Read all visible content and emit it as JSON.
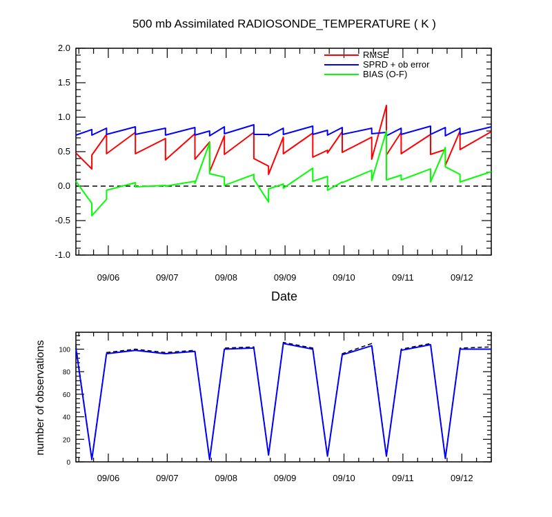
{
  "chart_data": [
    {
      "type": "line",
      "title": "500 mb Assimilated RADIOSONDE_TEMPERATURE ( K )",
      "xlabel": "Date",
      "ylabel": "",
      "xlim": [
        5.45,
        12.5
      ],
      "ylim": [
        -1.0,
        2.0
      ],
      "yticks": [
        -1.0,
        -0.5,
        0.0,
        0.5,
        1.0,
        1.5,
        2.0
      ],
      "ytick_labels": [
        "-1.0",
        "-0.5",
        "0.0",
        "0.5",
        "1.0",
        "1.5",
        "2.0"
      ],
      "xticks": [
        6,
        7,
        8,
        9,
        10,
        11,
        12
      ],
      "xtick_labels": [
        "09/06",
        "09/07",
        "09/08",
        "09/09",
        "09/10",
        "09/11",
        "09/12"
      ],
      "reference_line": {
        "y": 0.0,
        "style": "dashed",
        "color": "#000000"
      },
      "legend_position": "top-right",
      "series": [
        {
          "name": "RMSE",
          "color": "#ff0000",
          "points": [
            [
              5.45,
              0.48
            ],
            [
              5.72,
              0.25
            ],
            [
              5.72,
              0.45
            ],
            [
              5.97,
              0.75
            ],
            [
              5.97,
              0.47
            ],
            [
              6.46,
              0.78
            ],
            [
              6.46,
              0.47
            ],
            [
              6.97,
              0.69
            ],
            [
              6.97,
              0.38
            ],
            [
              7.47,
              0.76
            ],
            [
              7.47,
              0.39
            ],
            [
              7.72,
              0.64
            ],
            [
              7.72,
              0.21
            ],
            [
              7.97,
              0.73
            ],
            [
              7.97,
              0.46
            ],
            [
              8.47,
              0.78
            ],
            [
              8.47,
              0.4
            ],
            [
              8.72,
              0.29
            ],
            [
              8.72,
              0.17
            ],
            [
              8.97,
              0.71
            ],
            [
              8.97,
              0.47
            ],
            [
              9.47,
              0.77
            ],
            [
              9.47,
              0.42
            ],
            [
              9.72,
              0.52
            ],
            [
              9.72,
              0.48
            ],
            [
              9.97,
              0.79
            ],
            [
              9.97,
              0.49
            ],
            [
              10.47,
              0.71
            ],
            [
              10.47,
              0.39
            ],
            [
              10.72,
              1.17
            ],
            [
              10.72,
              0.45
            ],
            [
              10.97,
              0.78
            ],
            [
              10.97,
              0.47
            ],
            [
              11.47,
              0.75
            ],
            [
              11.47,
              0.46
            ],
            [
              11.72,
              0.53
            ],
            [
              11.72,
              0.3
            ],
            [
              11.97,
              0.8
            ],
            [
              11.97,
              0.53
            ],
            [
              12.5,
              0.79
            ]
          ]
        },
        {
          "name": "SPRD + ob error",
          "color": "#0000ff",
          "points": [
            [
              5.45,
              0.74
            ],
            [
              5.72,
              0.82
            ],
            [
              5.72,
              0.74
            ],
            [
              5.97,
              0.84
            ],
            [
              5.97,
              0.75
            ],
            [
              6.46,
              0.86
            ],
            [
              6.46,
              0.75
            ],
            [
              6.97,
              0.84
            ],
            [
              6.97,
              0.74
            ],
            [
              7.47,
              0.85
            ],
            [
              7.47,
              0.74
            ],
            [
              7.72,
              0.8
            ],
            [
              7.72,
              0.73
            ],
            [
              7.97,
              0.86
            ],
            [
              7.97,
              0.76
            ],
            [
              8.47,
              0.89
            ],
            [
              8.47,
              0.75
            ],
            [
              8.72,
              0.75
            ],
            [
              8.72,
              0.73
            ],
            [
              8.97,
              0.84
            ],
            [
              8.97,
              0.75
            ],
            [
              9.47,
              0.87
            ],
            [
              9.47,
              0.75
            ],
            [
              9.72,
              0.81
            ],
            [
              9.72,
              0.74
            ],
            [
              9.97,
              0.85
            ],
            [
              9.97,
              0.75
            ],
            [
              10.47,
              0.84
            ],
            [
              10.47,
              0.76
            ],
            [
              10.72,
              0.78
            ],
            [
              10.72,
              0.73
            ],
            [
              10.97,
              0.84
            ],
            [
              10.97,
              0.75
            ],
            [
              11.47,
              0.87
            ],
            [
              11.47,
              0.75
            ],
            [
              11.72,
              0.85
            ],
            [
              11.72,
              0.73
            ],
            [
              11.97,
              0.84
            ],
            [
              11.97,
              0.75
            ],
            [
              12.5,
              0.86
            ]
          ]
        },
        {
          "name": "BIAS (O-F)",
          "color": "#00ff00",
          "points": [
            [
              5.45,
              0.07
            ],
            [
              5.72,
              -0.25
            ],
            [
              5.72,
              -0.43
            ],
            [
              5.97,
              -0.19
            ],
            [
              5.97,
              -0.06
            ],
            [
              6.46,
              0.05
            ],
            [
              6.46,
              -0.01
            ],
            [
              6.97,
              0.01
            ],
            [
              6.97,
              0.0
            ],
            [
              7.47,
              0.07
            ],
            [
              7.47,
              0.04
            ],
            [
              7.72,
              0.63
            ],
            [
              7.72,
              0.18
            ],
            [
              7.97,
              0.13
            ],
            [
              7.97,
              0.01
            ],
            [
              8.47,
              0.17
            ],
            [
              8.47,
              0.1
            ],
            [
              8.72,
              -0.23
            ],
            [
              8.72,
              -0.04
            ],
            [
              8.97,
              0.03
            ],
            [
              8.97,
              -0.03
            ],
            [
              9.47,
              0.26
            ],
            [
              9.47,
              0.07
            ],
            [
              9.72,
              0.14
            ],
            [
              9.72,
              -0.06
            ],
            [
              9.97,
              0.06
            ],
            [
              9.97,
              0.05
            ],
            [
              10.47,
              0.23
            ],
            [
              10.47,
              0.08
            ],
            [
              10.72,
              0.8
            ],
            [
              10.72,
              0.09
            ],
            [
              10.97,
              0.16
            ],
            [
              10.97,
              0.09
            ],
            [
              11.47,
              0.25
            ],
            [
              11.47,
              0.06
            ],
            [
              11.72,
              0.56
            ],
            [
              11.72,
              0.28
            ],
            [
              11.97,
              0.17
            ],
            [
              11.97,
              0.06
            ],
            [
              12.5,
              0.21
            ]
          ]
        }
      ]
    },
    {
      "type": "line",
      "title": "",
      "xlabel": "",
      "ylabel": "number of observations",
      "xlim": [
        5.45,
        12.5
      ],
      "ylim": [
        0,
        115
      ],
      "yticks": [
        0,
        20,
        40,
        60,
        80,
        100
      ],
      "ytick_labels": [
        "0",
        "20",
        "40",
        "60",
        "80",
        "100"
      ],
      "xticks": [
        6,
        7,
        8,
        9,
        10,
        11,
        12
      ],
      "xtick_labels": [
        "09/06",
        "09/07",
        "09/08",
        "09/09",
        "09/10",
        "09/11",
        "09/12"
      ],
      "series": [
        {
          "style": "dashed",
          "color": "#000000",
          "points": [
            [
              5.45,
              103
            ],
            [
              5.72,
              3
            ],
            [
              5.97,
              97
            ],
            [
              6.46,
              100
            ],
            [
              6.97,
              97
            ],
            [
              7.47,
              99
            ],
            [
              7.72,
              3
            ],
            [
              7.97,
              101
            ],
            [
              8.47,
              102
            ],
            [
              8.72,
              7
            ],
            [
              8.97,
              106
            ],
            [
              9.47,
              101
            ],
            [
              9.72,
              6
            ],
            [
              9.97,
              96
            ],
            [
              10.47,
              105
            ],
            [
              10.72,
              6
            ],
            [
              10.97,
              100
            ],
            [
              11.47,
              105
            ],
            [
              11.72,
              4
            ],
            [
              11.97,
              101
            ],
            [
              12.5,
              102
            ]
          ]
        },
        {
          "style": "solid",
          "color": "#0000ff",
          "points": [
            [
              5.45,
              101
            ],
            [
              5.72,
              2
            ],
            [
              5.97,
              96
            ],
            [
              6.46,
              99
            ],
            [
              6.97,
              96
            ],
            [
              7.47,
              98
            ],
            [
              7.72,
              2
            ],
            [
              7.97,
              100
            ],
            [
              8.47,
              101
            ],
            [
              8.72,
              6
            ],
            [
              8.97,
              105
            ],
            [
              9.47,
              100
            ],
            [
              9.72,
              5
            ],
            [
              9.97,
              95
            ],
            [
              10.47,
              103
            ],
            [
              10.72,
              5
            ],
            [
              10.97,
              99
            ],
            [
              11.47,
              104
            ],
            [
              11.72,
              3
            ],
            [
              11.97,
              100
            ],
            [
              12.5,
              100
            ]
          ]
        }
      ]
    }
  ]
}
